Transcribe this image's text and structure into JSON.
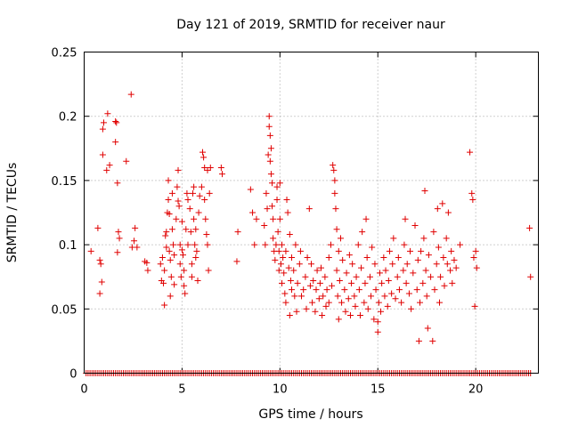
{
  "chart_data": {
    "type": "scatter",
    "title": "Day 121 of 2019, SRMTID for receiver naur",
    "xlabel": "GPS time / hours",
    "ylabel": "SRMTID / TECUs",
    "xlim": [
      0,
      23.2
    ],
    "ylim": [
      0,
      0.25
    ],
    "xticks": [
      0,
      5,
      10,
      15,
      20
    ],
    "yticks": [
      0,
      0.05,
      0.1,
      0.15,
      0.2,
      0.25
    ],
    "ytick_labels": [
      "0",
      "0.05",
      "0.1",
      "0.15",
      "0.2",
      "0.25"
    ],
    "grid": true,
    "marker": "+",
    "color": "#e00000",
    "series": [
      {
        "name": "SRMTID",
        "points": [
          [
            0.35,
            0.095
          ],
          [
            0.7,
            0.113
          ],
          [
            0.8,
            0.088
          ],
          [
            0.85,
            0.085
          ],
          [
            0.8,
            0.062
          ],
          [
            0.9,
            0.071
          ],
          [
            0.95,
            0.17
          ],
          [
            0.95,
            0.19
          ],
          [
            1.0,
            0.195
          ],
          [
            1.15,
            0.158
          ],
          [
            1.2,
            0.202
          ],
          [
            1.3,
            0.162
          ],
          [
            1.6,
            0.196
          ],
          [
            1.65,
            0.195
          ],
          [
            1.6,
            0.18
          ],
          [
            1.7,
            0.148
          ],
          [
            1.75,
            0.11
          ],
          [
            1.8,
            0.105
          ],
          [
            1.7,
            0.094
          ],
          [
            2.15,
            0.165
          ],
          [
            2.4,
            0.217
          ],
          [
            2.45,
            0.098
          ],
          [
            2.55,
            0.103
          ],
          [
            2.6,
            0.113
          ],
          [
            2.7,
            0.098
          ],
          [
            3.1,
            0.087
          ],
          [
            3.2,
            0.086
          ],
          [
            3.25,
            0.08
          ],
          [
            3.9,
            0.085
          ],
          [
            3.95,
            0.072
          ],
          [
            4.0,
            0.09
          ],
          [
            4.05,
            0.07
          ],
          [
            4.1,
            0.053
          ],
          [
            4.1,
            0.08
          ],
          [
            4.15,
            0.107
          ],
          [
            4.2,
            0.11
          ],
          [
            4.2,
            0.098
          ],
          [
            4.25,
            0.125
          ],
          [
            4.3,
            0.135
          ],
          [
            4.3,
            0.15
          ],
          [
            4.35,
            0.124
          ],
          [
            4.35,
            0.095
          ],
          [
            4.4,
            0.088
          ],
          [
            4.4,
            0.06
          ],
          [
            4.45,
            0.075
          ],
          [
            4.5,
            0.112
          ],
          [
            4.5,
            0.14
          ],
          [
            4.55,
            0.1
          ],
          [
            4.6,
            0.092
          ],
          [
            4.6,
            0.069
          ],
          [
            4.7,
            0.12
          ],
          [
            4.75,
            0.145
          ],
          [
            4.8,
            0.134
          ],
          [
            4.8,
            0.158
          ],
          [
            4.85,
            0.13
          ],
          [
            4.9,
            0.1
          ],
          [
            4.9,
            0.085
          ],
          [
            4.95,
            0.075
          ],
          [
            5.0,
            0.118
          ],
          [
            5.0,
            0.096
          ],
          [
            5.05,
            0.092
          ],
          [
            5.1,
            0.08
          ],
          [
            5.1,
            0.068
          ],
          [
            5.15,
            0.062
          ],
          [
            5.2,
            0.112
          ],
          [
            5.25,
            0.14
          ],
          [
            5.3,
            0.135
          ],
          [
            5.3,
            0.1
          ],
          [
            5.4,
            0.128
          ],
          [
            5.45,
            0.11
          ],
          [
            5.5,
            0.085
          ],
          [
            5.5,
            0.075
          ],
          [
            5.55,
            0.14
          ],
          [
            5.6,
            0.145
          ],
          [
            5.6,
            0.12
          ],
          [
            5.65,
            0.1
          ],
          [
            5.7,
            0.09
          ],
          [
            5.7,
            0.112
          ],
          [
            5.75,
            0.095
          ],
          [
            5.8,
            0.072
          ],
          [
            5.85,
            0.125
          ],
          [
            5.9,
            0.138
          ],
          [
            6.0,
            0.145
          ],
          [
            6.05,
            0.172
          ],
          [
            6.1,
            0.168
          ],
          [
            6.15,
            0.16
          ],
          [
            6.15,
            0.135
          ],
          [
            6.2,
            0.12
          ],
          [
            6.25,
            0.108
          ],
          [
            6.3,
            0.158
          ],
          [
            6.3,
            0.1
          ],
          [
            6.35,
            0.08
          ],
          [
            6.4,
            0.14
          ],
          [
            6.45,
            0.16
          ],
          [
            7.0,
            0.16
          ],
          [
            7.05,
            0.155
          ],
          [
            7.8,
            0.087
          ],
          [
            7.85,
            0.11
          ],
          [
            8.5,
            0.143
          ],
          [
            8.6,
            0.125
          ],
          [
            8.7,
            0.1
          ],
          [
            8.8,
            0.12
          ],
          [
            9.2,
            0.115
          ],
          [
            9.25,
            0.1
          ],
          [
            9.3,
            0.14
          ],
          [
            9.35,
            0.128
          ],
          [
            9.4,
            0.17
          ],
          [
            9.45,
            0.2
          ],
          [
            9.45,
            0.192
          ],
          [
            9.5,
            0.185
          ],
          [
            9.5,
            0.165
          ],
          [
            9.55,
            0.175
          ],
          [
            9.55,
            0.155
          ],
          [
            9.6,
            0.148
          ],
          [
            9.6,
            0.13
          ],
          [
            9.65,
            0.12
          ],
          [
            9.65,
            0.105
          ],
          [
            9.7,
            0.095
          ],
          [
            9.75,
            0.088
          ],
          [
            9.8,
            0.1
          ],
          [
            9.85,
            0.145
          ],
          [
            9.85,
            0.135
          ],
          [
            9.9,
            0.11
          ],
          [
            9.95,
            0.095
          ],
          [
            9.95,
            0.08
          ],
          [
            10.0,
            0.148
          ],
          [
            10.0,
            0.12
          ],
          [
            10.05,
            0.085
          ],
          [
            10.1,
            0.1
          ],
          [
            10.1,
            0.07
          ],
          [
            10.15,
            0.09
          ],
          [
            10.2,
            0.078
          ],
          [
            10.25,
            0.062
          ],
          [
            10.3,
            0.095
          ],
          [
            10.3,
            0.055
          ],
          [
            10.35,
            0.135
          ],
          [
            10.4,
            0.125
          ],
          [
            10.45,
            0.082
          ],
          [
            10.5,
            0.108
          ],
          [
            10.5,
            0.045
          ],
          [
            10.55,
            0.072
          ],
          [
            10.6,
            0.09
          ],
          [
            10.6,
            0.065
          ],
          [
            10.7,
            0.08
          ],
          [
            10.75,
            0.06
          ],
          [
            10.8,
            0.1
          ],
          [
            10.85,
            0.048
          ],
          [
            10.9,
            0.07
          ],
          [
            11.0,
            0.085
          ],
          [
            11.05,
            0.095
          ],
          [
            11.1,
            0.06
          ],
          [
            11.2,
            0.065
          ],
          [
            11.3,
            0.075
          ],
          [
            11.35,
            0.05
          ],
          [
            11.4,
            0.09
          ],
          [
            11.5,
            0.128
          ],
          [
            11.55,
            0.068
          ],
          [
            11.6,
            0.085
          ],
          [
            11.65,
            0.055
          ],
          [
            11.7,
            0.072
          ],
          [
            11.8,
            0.048
          ],
          [
            11.85,
            0.065
          ],
          [
            11.9,
            0.08
          ],
          [
            12.0,
            0.058
          ],
          [
            12.05,
            0.07
          ],
          [
            12.1,
            0.082
          ],
          [
            12.15,
            0.045
          ],
          [
            12.2,
            0.06
          ],
          [
            12.3,
            0.075
          ],
          [
            12.35,
            0.052
          ],
          [
            12.4,
            0.065
          ],
          [
            12.5,
            0.09
          ],
          [
            12.5,
            0.055
          ],
          [
            12.6,
            0.1
          ],
          [
            12.65,
            0.068
          ],
          [
            12.7,
            0.162
          ],
          [
            12.75,
            0.158
          ],
          [
            12.8,
            0.15
          ],
          [
            12.8,
            0.14
          ],
          [
            12.85,
            0.128
          ],
          [
            12.9,
            0.112
          ],
          [
            12.9,
            0.08
          ],
          [
            12.95,
            0.06
          ],
          [
            13.0,
            0.095
          ],
          [
            13.0,
            0.042
          ],
          [
            13.05,
            0.072
          ],
          [
            13.1,
            0.105
          ],
          [
            13.15,
            0.055
          ],
          [
            13.2,
            0.088
          ],
          [
            13.3,
            0.065
          ],
          [
            13.35,
            0.048
          ],
          [
            13.4,
            0.078
          ],
          [
            13.5,
            0.058
          ],
          [
            13.55,
            0.092
          ],
          [
            13.6,
            0.045
          ],
          [
            13.65,
            0.07
          ],
          [
            13.7,
            0.085
          ],
          [
            13.8,
            0.06
          ],
          [
            13.85,
            0.052
          ],
          [
            13.9,
            0.075
          ],
          [
            14.0,
            0.1
          ],
          [
            14.05,
            0.065
          ],
          [
            14.1,
            0.045
          ],
          [
            14.15,
            0.082
          ],
          [
            14.2,
            0.11
          ],
          [
            14.3,
            0.055
          ],
          [
            14.35,
            0.07
          ],
          [
            14.4,
            0.12
          ],
          [
            14.45,
            0.09
          ],
          [
            14.5,
            0.05
          ],
          [
            14.6,
            0.075
          ],
          [
            14.65,
            0.06
          ],
          [
            14.7,
            0.098
          ],
          [
            14.8,
            0.042
          ],
          [
            14.85,
            0.085
          ],
          [
            14.9,
            0.065
          ],
          [
            15.0,
            0.04
          ],
          [
            15.0,
            0.032
          ],
          [
            15.05,
            0.055
          ],
          [
            15.1,
            0.078
          ],
          [
            15.15,
            0.048
          ],
          [
            15.2,
            0.07
          ],
          [
            15.3,
            0.09
          ],
          [
            15.35,
            0.06
          ],
          [
            15.4,
            0.08
          ],
          [
            15.5,
            0.052
          ],
          [
            15.55,
            0.072
          ],
          [
            15.6,
            0.095
          ],
          [
            15.7,
            0.062
          ],
          [
            15.75,
            0.085
          ],
          [
            15.8,
            0.105
          ],
          [
            15.9,
            0.058
          ],
          [
            16.0,
            0.075
          ],
          [
            16.05,
            0.09
          ],
          [
            16.1,
            0.065
          ],
          [
            16.2,
            0.055
          ],
          [
            16.3,
            0.08
          ],
          [
            16.35,
            0.1
          ],
          [
            16.4,
            0.12
          ],
          [
            16.45,
            0.07
          ],
          [
            16.5,
            0.085
          ],
          [
            16.6,
            0.062
          ],
          [
            16.65,
            0.095
          ],
          [
            16.7,
            0.05
          ],
          [
            16.8,
            0.078
          ],
          [
            16.9,
            0.115
          ],
          [
            17.0,
            0.065
          ],
          [
            17.05,
            0.088
          ],
          [
            17.1,
            0.025
          ],
          [
            17.15,
            0.055
          ],
          [
            17.2,
            0.095
          ],
          [
            17.3,
            0.07
          ],
          [
            17.35,
            0.105
          ],
          [
            17.4,
            0.142
          ],
          [
            17.45,
            0.08
          ],
          [
            17.5,
            0.06
          ],
          [
            17.55,
            0.035
          ],
          [
            17.6,
            0.092
          ],
          [
            17.7,
            0.075
          ],
          [
            17.8,
            0.025
          ],
          [
            17.85,
            0.11
          ],
          [
            17.9,
            0.065
          ],
          [
            18.0,
            0.085
          ],
          [
            18.05,
            0.128
          ],
          [
            18.1,
            0.098
          ],
          [
            18.15,
            0.055
          ],
          [
            18.2,
            0.075
          ],
          [
            18.3,
            0.132
          ],
          [
            18.35,
            0.09
          ],
          [
            18.4,
            0.068
          ],
          [
            18.5,
            0.105
          ],
          [
            18.55,
            0.085
          ],
          [
            18.6,
            0.125
          ],
          [
            18.7,
            0.08
          ],
          [
            18.75,
            0.095
          ],
          [
            18.8,
            0.07
          ],
          [
            18.9,
            0.088
          ],
          [
            19.0,
            0.082
          ],
          [
            19.2,
            0.1
          ],
          [
            19.7,
            0.172
          ],
          [
            19.8,
            0.14
          ],
          [
            19.85,
            0.135
          ],
          [
            19.9,
            0.09
          ],
          [
            19.95,
            0.052
          ],
          [
            20.0,
            0.095
          ],
          [
            20.05,
            0.082
          ],
          [
            22.75,
            0.113
          ],
          [
            22.8,
            0.075
          ]
        ]
      }
    ],
    "baseline": {
      "value": 0,
      "from": 0.1,
      "to": 22.8,
      "step": 0.1
    }
  }
}
